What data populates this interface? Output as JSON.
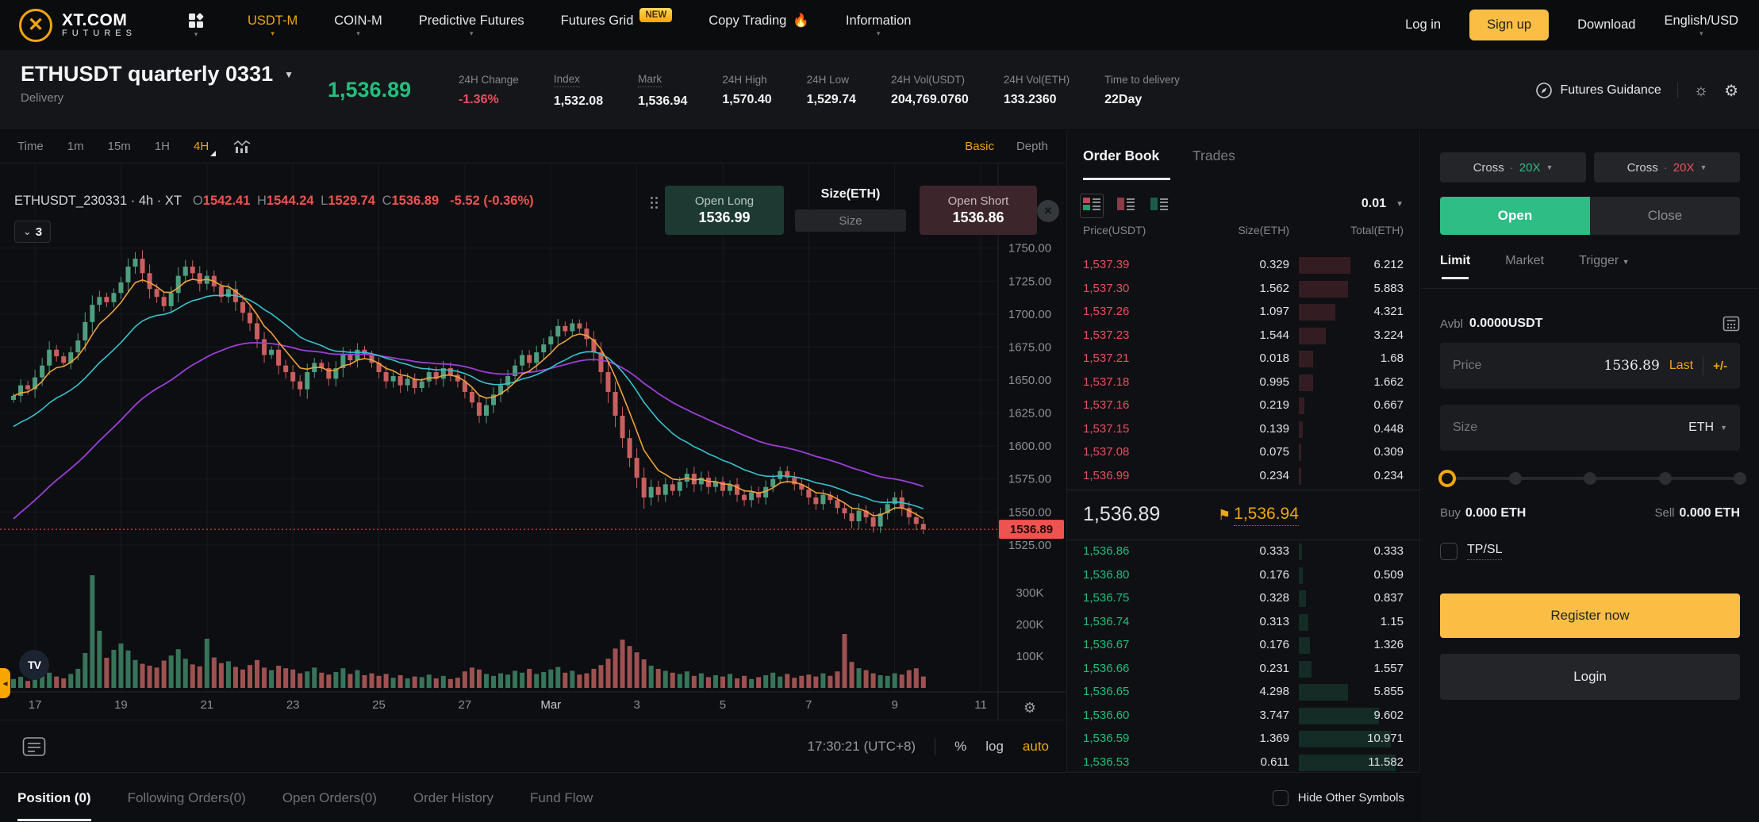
{
  "nav": {
    "logo_title": "XT.COM",
    "logo_subtitle": "FUTURES",
    "items": [
      {
        "label": "USDT-M",
        "active": true,
        "caret": true
      },
      {
        "label": "COIN-M",
        "caret": true
      },
      {
        "label": "Predictive Futures",
        "caret": true
      },
      {
        "label": "Futures Grid",
        "badge": "NEW"
      },
      {
        "label": "Copy Trading",
        "emoji": "🔥"
      },
      {
        "label": "Information",
        "caret": true
      }
    ],
    "login_label": "Log in",
    "signup_label": "Sign up",
    "download_label": "Download",
    "locale_label": "English/USD"
  },
  "ticker": {
    "symbol": "ETHUSDT quarterly 0331",
    "type": "Delivery",
    "last_price": "1,536.89",
    "stats": [
      {
        "label": "24H Change",
        "value": "-1.36%",
        "color": "red"
      },
      {
        "label": "Index",
        "value": "1,532.08",
        "underline": true
      },
      {
        "label": "Mark",
        "value": "1,536.94",
        "underline": true
      },
      {
        "label": "24H High",
        "value": "1,570.40"
      },
      {
        "label": "24H Low",
        "value": "1,529.74"
      },
      {
        "label": "24H Vol(USDT)",
        "value": "204,769.0760"
      },
      {
        "label": "24H Vol(ETH)",
        "value": "133.2360"
      },
      {
        "label": "Time to delivery",
        "value": "22Day"
      }
    ],
    "guidance_label": "Futures Guidance"
  },
  "chart": {
    "timeframes": [
      "Time",
      "1m",
      "15m",
      "1H",
      "4H"
    ],
    "active_timeframe": "4H",
    "mode_tabs": [
      "Basic",
      "Depth"
    ],
    "active_mode": "Basic",
    "legend": {
      "series": "ETHUSDT_230331 · 4h · XT",
      "items": [
        {
          "k": "O",
          "v": "1542.41"
        },
        {
          "k": "H",
          "v": "1544.24"
        },
        {
          "k": "L",
          "v": "1529.74"
        },
        {
          "k": "C",
          "v": "1536.89"
        }
      ],
      "change": "-5.52 (-0.36%)"
    },
    "collapse_count": "3",
    "overlay": {
      "open_long_label": "Open Long",
      "open_long_price": "1536.99",
      "size_label": "Size(ETH)",
      "size_placeholder": "Size",
      "open_short_label": "Open Short",
      "open_short_price": "1536.86"
    },
    "status": {
      "clock": "17:30:21 (UTC+8)",
      "percent": "%",
      "log": "log",
      "auto": "auto"
    }
  },
  "chart_data": {
    "type": "candlestick+volume",
    "symbol": "ETHUSDT_230331",
    "interval": "4h",
    "title": "ETHUSDT quarterly 0331 4h candles",
    "ylim": [
      1517,
      1808
    ],
    "price_ticks": [
      1750,
      1725,
      1700,
      1675,
      1650,
      1625,
      1600,
      1575,
      1550,
      1525
    ],
    "volume_ticks": [
      {
        "label": "300K",
        "v": 300
      },
      {
        "label": "200K",
        "v": 200
      },
      {
        "label": "100K",
        "v": 100
      }
    ],
    "x_ticks": [
      {
        "label": "17",
        "i": 3
      },
      {
        "label": "19",
        "i": 15
      },
      {
        "label": "21",
        "i": 27
      },
      {
        "label": "23",
        "i": 39
      },
      {
        "label": "25",
        "i": 51
      },
      {
        "label": "27",
        "i": 63
      },
      {
        "label": "Mar",
        "i": 75,
        "month": true
      },
      {
        "label": "3",
        "i": 87
      },
      {
        "label": "5",
        "i": 99
      },
      {
        "label": "7",
        "i": 111
      },
      {
        "label": "9",
        "i": 123
      },
      {
        "label": "11",
        "i": 135
      }
    ],
    "current_price": 1536.89,
    "current_price_label": "1536.89",
    "first_open": 1635,
    "closes": [
      1638,
      1646,
      1643,
      1652,
      1661,
      1673,
      1668,
      1663,
      1671,
      1680,
      1694,
      1707,
      1713,
      1709,
      1716,
      1724,
      1736,
      1742,
      1731,
      1719,
      1713,
      1706,
      1716,
      1729,
      1736,
      1731,
      1723,
      1729,
      1721,
      1713,
      1719,
      1709,
      1701,
      1693,
      1681,
      1669,
      1673,
      1661,
      1656,
      1649,
      1643,
      1656,
      1663,
      1659,
      1651,
      1659,
      1669,
      1665,
      1673,
      1669,
      1663,
      1656,
      1649,
      1653,
      1646,
      1651,
      1644,
      1649,
      1656,
      1651,
      1659,
      1654,
      1649,
      1641,
      1633,
      1623,
      1631,
      1639,
      1646,
      1653,
      1661,
      1669,
      1663,
      1671,
      1677,
      1683,
      1691,
      1687,
      1693,
      1689,
      1681,
      1671,
      1656,
      1641,
      1623,
      1606,
      1591,
      1576,
      1561,
      1569,
      1563,
      1571,
      1566,
      1573,
      1579,
      1571,
      1576,
      1569,
      1573,
      1566,
      1571,
      1563,
      1559,
      1565,
      1561,
      1569,
      1575,
      1581,
      1576,
      1571,
      1567,
      1561,
      1556,
      1563,
      1559,
      1553,
      1549,
      1543,
      1551,
      1546,
      1539,
      1549,
      1556,
      1561,
      1553,
      1546,
      1541,
      1536.89
    ],
    "volumes_k": [
      28,
      35,
      22,
      40,
      55,
      48,
      36,
      30,
      44,
      60,
      110,
      355,
      180,
      95,
      120,
      140,
      118,
      88,
      76,
      70,
      64,
      86,
      102,
      122,
      92,
      74,
      68,
      155,
      96,
      78,
      84,
      66,
      58,
      72,
      88,
      64,
      56,
      70,
      62,
      58,
      46,
      52,
      64,
      48,
      42,
      50,
      62,
      44,
      56,
      40,
      46,
      38,
      44,
      32,
      40,
      30,
      36,
      34,
      42,
      30,
      38,
      28,
      32,
      52,
      64,
      58,
      44,
      38,
      46,
      42,
      54,
      48,
      60,
      44,
      50,
      58,
      66,
      48,
      54,
      42,
      46,
      60,
      72,
      92,
      124,
      152,
      132,
      112,
      90,
      70,
      60,
      54,
      48,
      44,
      52,
      38,
      46,
      34,
      40,
      36,
      44,
      30,
      38,
      28,
      34,
      40,
      48,
      36,
      44,
      32,
      38,
      42,
      36,
      46,
      38,
      52,
      170,
      82,
      62,
      56,
      46,
      40,
      38,
      46,
      42,
      56,
      62,
      36
    ],
    "ma": {
      "fast_span": 6,
      "mid_span": 18,
      "slow_span": 40,
      "mid_seed": 1612,
      "slow_seed": 1540
    },
    "colors": {
      "up": "#4e9e7f",
      "down": "#ca5f5f",
      "vol_up": "#3a7a5f",
      "vol_down": "#a65555",
      "ma_fast": "#efa23b",
      "ma_mid": "#35c3d0",
      "ma_slow": "#9b3fd9",
      "last_line": "#ef5350"
    }
  },
  "order_book": {
    "tab_active": "Order Book",
    "tab_trades": "Trades",
    "precision": "0.01",
    "columns": [
      "Price(USDT)",
      "Size(ETH)",
      "Total(ETH)"
    ],
    "asks": [
      [
        "1,537.39",
        "0.329",
        "6.212"
      ],
      [
        "1,537.30",
        "1.562",
        "5.883"
      ],
      [
        "1,537.26",
        "1.097",
        "4.321"
      ],
      [
        "1,537.23",
        "1.544",
        "3.224"
      ],
      [
        "1,537.21",
        "0.018",
        "1.68"
      ],
      [
        "1,537.18",
        "0.995",
        "1.662"
      ],
      [
        "1,537.16",
        "0.219",
        "0.667"
      ],
      [
        "1,537.15",
        "0.139",
        "0.448"
      ],
      [
        "1,537.08",
        "0.075",
        "0.309"
      ],
      [
        "1,536.99",
        "0.234",
        "0.234"
      ]
    ],
    "mid": {
      "last": "1,536.89",
      "mark": "1,536.94"
    },
    "bids": [
      [
        "1,536.86",
        "0.333",
        "0.333"
      ],
      [
        "1,536.80",
        "0.176",
        "0.509"
      ],
      [
        "1,536.75",
        "0.328",
        "0.837"
      ],
      [
        "1,536.74",
        "0.313",
        "1.15"
      ],
      [
        "1,536.67",
        "0.176",
        "1.326"
      ],
      [
        "1,536.66",
        "0.231",
        "1.557"
      ],
      [
        "1,536.65",
        "4.298",
        "5.855"
      ],
      [
        "1,536.60",
        "3.747",
        "9.602"
      ],
      [
        "1,536.59",
        "1.369",
        "10.971"
      ],
      [
        "1,536.53",
        "0.611",
        "11.582"
      ]
    ]
  },
  "trade_panel": {
    "leverage_left": {
      "mode": "Cross",
      "value": "20X"
    },
    "leverage_right": {
      "mode": "Cross",
      "value": "20X"
    },
    "open_label": "Open",
    "close_label": "Close",
    "order_tabs": [
      "Limit",
      "Market",
      "Trigger"
    ],
    "avbl_label": "Avbl",
    "avbl_value": "0.0000USDT",
    "price_placeholder": "Price",
    "price_value": "1536.89",
    "price_last": "Last",
    "price_adjust": "+/-",
    "size_placeholder": "Size",
    "size_unit": "ETH",
    "buy_label": "Buy",
    "buy_value": "0.000 ETH",
    "sell_label": "Sell",
    "sell_value": "0.000 ETH",
    "tpsl_label": "TP/SL",
    "register_label": "Register now",
    "login_label": "Login"
  },
  "bottom_bar": {
    "tabs": [
      "Position (0)",
      "Following Orders(0)",
      "Open Orders(0)",
      "Order History",
      "Fund Flow"
    ],
    "active_tab": "Position (0)",
    "hide_label": "Hide Other Symbols"
  }
}
